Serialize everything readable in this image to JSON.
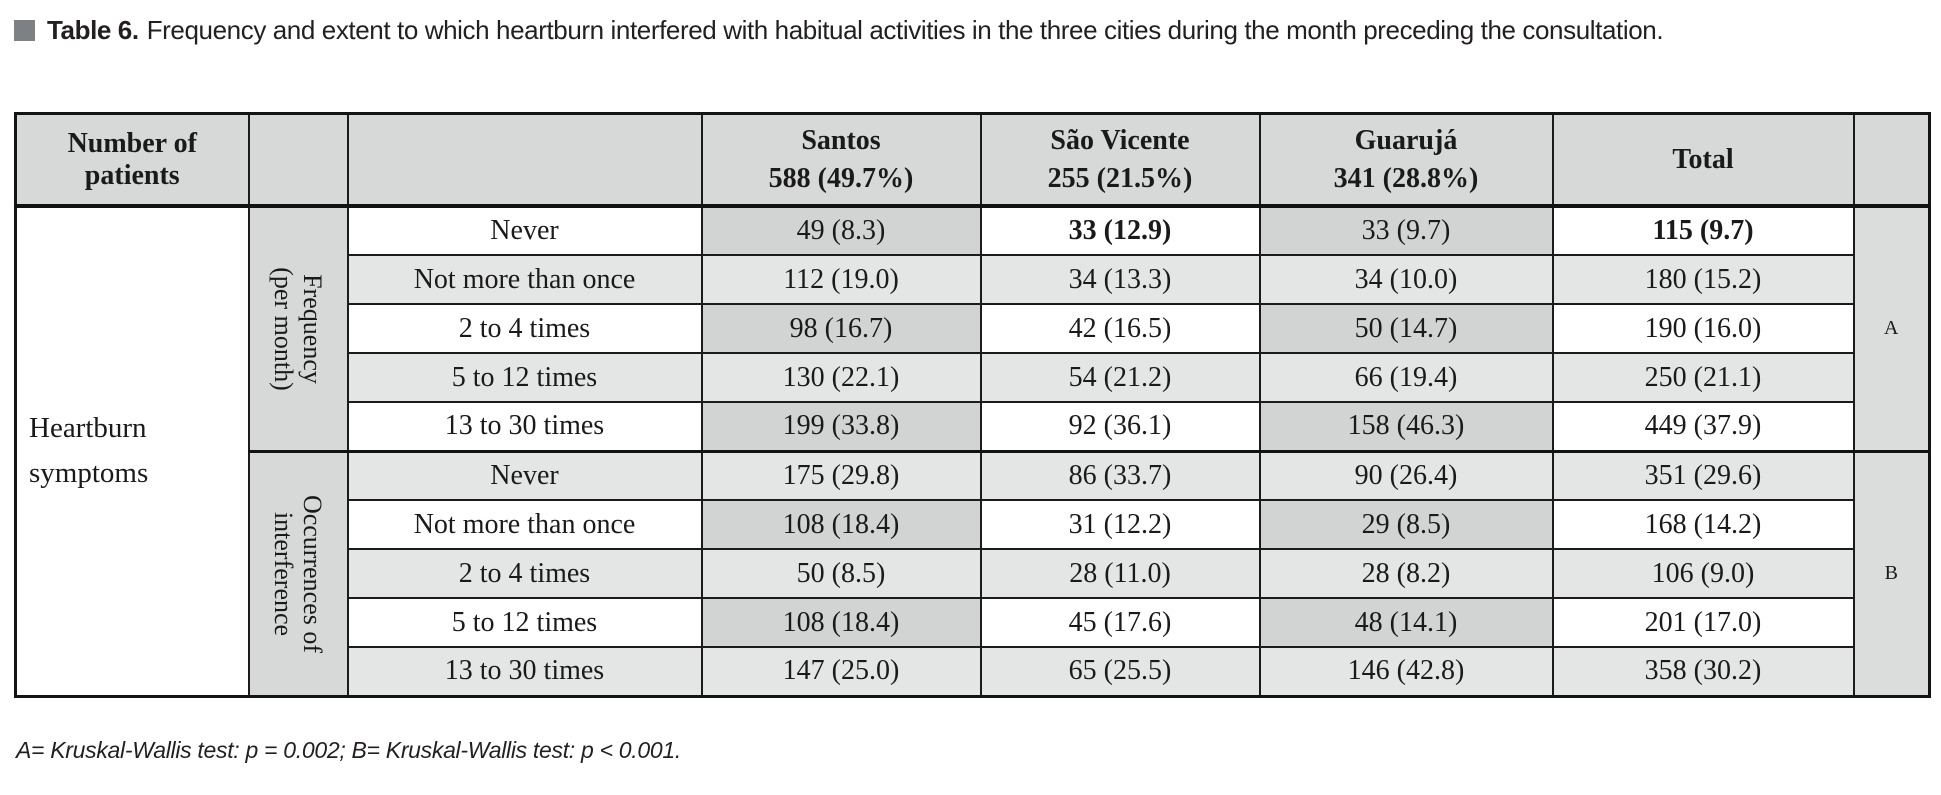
{
  "title": {
    "prefix": "Table 6.",
    "text": "Frequency and extent to which heartburn interfered with habitual activities in the three cities during the month preceding the consultation."
  },
  "colors": {
    "caption_bullet": "#7e8183",
    "header_gray": "#d7d9d8",
    "cell_dark_gray": "#d2d4d3",
    "cell_light_gray": "#e4e6e5",
    "marker_column_gray": "#dbdddc",
    "border": "#1b1b1b"
  },
  "table": {
    "corner_header": "Number of patients",
    "col_headers": [
      {
        "city": "Santos",
        "n": "588 (49.7%)"
      },
      {
        "city": "São Vicente",
        "n": "255 (21.5%)"
      },
      {
        "city": "Guarujá",
        "n": "341 (28.8%)"
      },
      {
        "city": "Total",
        "n": ""
      }
    ],
    "row_group_label": "Heartburn symptoms",
    "sections": [
      {
        "label_line1": "Frequency",
        "label_line2": "(per month)",
        "marker": "A",
        "rows": [
          {
            "label": "Never",
            "values": [
              "49 (8.3)",
              "33 (12.9)",
              "33 (9.7)",
              "115 (9.7)"
            ],
            "bold": [
              false,
              true,
              false,
              true
            ]
          },
          {
            "label": "Not more than once",
            "values": [
              "112 (19.0)",
              "34 (13.3)",
              "34 (10.0)",
              "180 (15.2)"
            ]
          },
          {
            "label": "2 to 4 times",
            "values": [
              "98 (16.7)",
              "42 (16.5)",
              "50 (14.7)",
              "190 (16.0)"
            ]
          },
          {
            "label": "5 to 12 times",
            "values": [
              "130 (22.1)",
              "54 (21.2)",
              "66 (19.4)",
              "250 (21.1)"
            ]
          },
          {
            "label": "13 to 30 times",
            "values": [
              "199 (33.8)",
              "92 (36.1)",
              "158 (46.3)",
              "449 (37.9)"
            ]
          }
        ]
      },
      {
        "label_line1": "Occurrences of",
        "label_line2": "interference",
        "marker": "B",
        "rows": [
          {
            "label": "Never",
            "values": [
              "175 (29.8)",
              "86 (33.7)",
              "90 (26.4)",
              "351 (29.6)"
            ]
          },
          {
            "label": "Not more than once",
            "values": [
              "108 (18.4)",
              "31 (12.2)",
              "29 (8.5)",
              "168 (14.2)"
            ]
          },
          {
            "label": "2 to 4 times",
            "values": [
              "50 (8.5)",
              "28 (11.0)",
              "28 (8.2)",
              "106 (9.0)"
            ]
          },
          {
            "label": "5 to 12 times",
            "values": [
              "108 (18.4)",
              "45 (17.6)",
              "48 (14.1)",
              "201 (17.0)"
            ]
          },
          {
            "label": "13 to 30 times",
            "values": [
              "147 (25.0)",
              "65 (25.5)",
              "146 (42.8)",
              "358 (30.2)"
            ]
          }
        ]
      }
    ]
  },
  "footnote": "A= Kruskal-Wallis test: p = 0.002; B= Kruskal-Wallis test: p < 0.001."
}
